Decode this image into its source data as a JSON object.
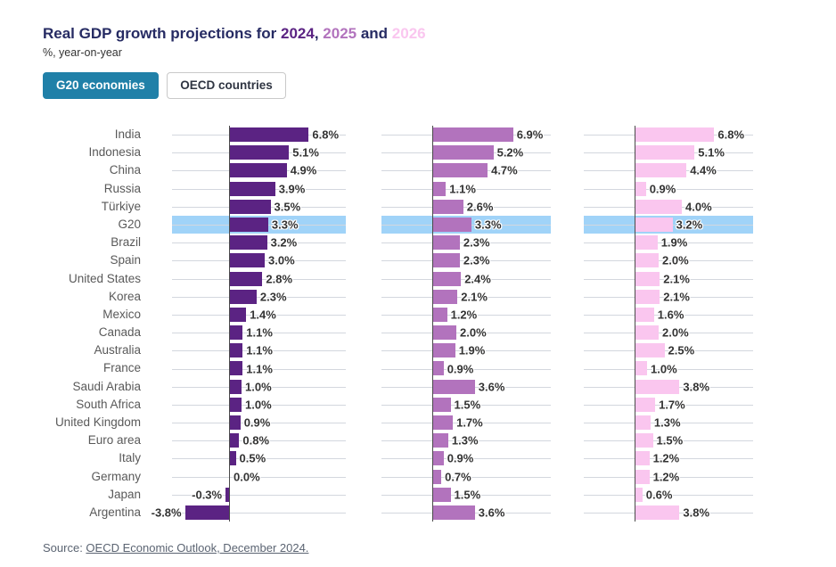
{
  "header": {
    "title_prefix": "Real GDP growth projections for ",
    "year_2024": "2024",
    "comma": ", ",
    "and_text": " and ",
    "year_2025": "2025",
    "year_2026": "2026",
    "subtitle": "%, year-on-year"
  },
  "toggle": {
    "g20_label": "G20 economies",
    "oecd_label": "OECD countries"
  },
  "source": {
    "prefix": "Source: ",
    "link_text": "OECD Economic Outlook, December 2024."
  },
  "colors": {
    "bar_2024": "#5b2383",
    "bar_2025": "#b273bd",
    "bar_2026": "#fac6ef",
    "highlight_band": "#a0d3f8",
    "active_button": "#2080a8",
    "title_text": "#262b63",
    "gridline": "#d3d7de",
    "axis_line": "#4a4a4a"
  },
  "chart_data": {
    "type": "bar",
    "orientation": "horizontal",
    "title": "Real GDP growth projections for 2024, 2025 and 2026",
    "subtitle": "%, year-on-year",
    "value_suffix": "%",
    "highlight_category": "G20",
    "legend_position": "title-inline",
    "grid": true,
    "categories": [
      "India",
      "Indonesia",
      "China",
      "Russia",
      "Türkiye",
      "G20",
      "Brazil",
      "Spain",
      "United States",
      "Korea",
      "Mexico",
      "Canada",
      "Australia",
      "France",
      "Saudi Arabia",
      "South Africa",
      "United Kingdom",
      "Euro area",
      "Italy",
      "Germany",
      "Japan",
      "Argentina"
    ],
    "series": [
      {
        "name": "2024",
        "color": "#5b2383",
        "values": [
          6.8,
          5.1,
          4.9,
          3.9,
          3.5,
          3.3,
          3.2,
          3.0,
          2.8,
          2.3,
          1.4,
          1.1,
          1.1,
          1.1,
          1.0,
          1.0,
          0.9,
          0.8,
          0.5,
          0.0,
          -0.3,
          -3.8
        ]
      },
      {
        "name": "2025",
        "color": "#b273bd",
        "values": [
          6.9,
          5.2,
          4.7,
          1.1,
          2.6,
          3.3,
          2.3,
          2.3,
          2.4,
          2.1,
          1.2,
          2.0,
          1.9,
          0.9,
          3.6,
          1.5,
          1.7,
          1.3,
          0.9,
          0.7,
          1.5,
          3.6
        ]
      },
      {
        "name": "2026",
        "color": "#fac6ef",
        "values": [
          6.8,
          5.1,
          4.4,
          0.9,
          4.0,
          3.2,
          1.9,
          2.0,
          2.1,
          2.1,
          1.6,
          2.0,
          2.5,
          1.0,
          3.8,
          1.7,
          1.3,
          1.5,
          1.2,
          1.2,
          0.6,
          3.8
        ]
      }
    ]
  }
}
